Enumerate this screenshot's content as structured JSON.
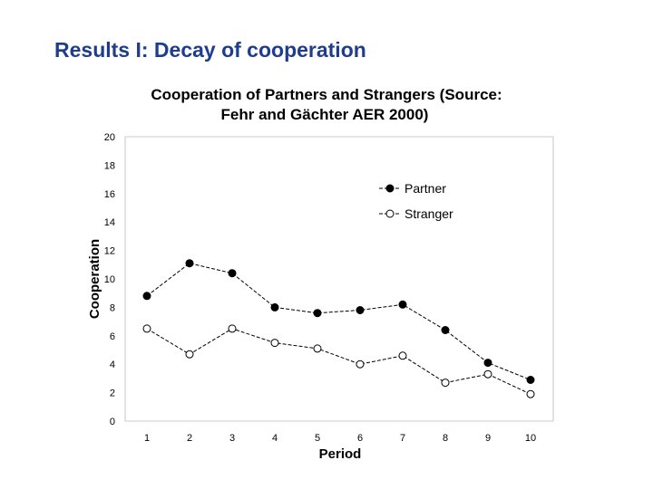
{
  "slide": {
    "title": "Results I: Decay of cooperation"
  },
  "chart_data": {
    "type": "line",
    "title": "Cooperation of Partners and Strangers (Source:",
    "subtitle": "Fehr and Gächter AER 2000)",
    "xlabel": "Period",
    "ylabel": "Cooperation",
    "categories": [
      "1",
      "2",
      "3",
      "4",
      "5",
      "6",
      "7",
      "8",
      "9",
      "10"
    ],
    "y_ticks": [
      "0",
      "2",
      "4",
      "6",
      "8",
      "10",
      "12",
      "14",
      "16",
      "18",
      "20"
    ],
    "ylim": [
      0,
      20
    ],
    "grid": false,
    "legend_position": "top-right",
    "series": [
      {
        "name": "Partner",
        "marker": "filled-circle",
        "values": [
          8.8,
          11.1,
          10.4,
          8.0,
          7.6,
          7.8,
          8.2,
          6.4,
          4.1,
          2.9
        ]
      },
      {
        "name": "Stranger",
        "marker": "open-circle",
        "values": [
          6.5,
          4.7,
          6.5,
          5.5,
          5.1,
          4.0,
          4.6,
          2.7,
          3.3,
          1.9
        ]
      }
    ],
    "colors": {
      "line": "#000000",
      "frame": "#c8c8c8"
    }
  }
}
